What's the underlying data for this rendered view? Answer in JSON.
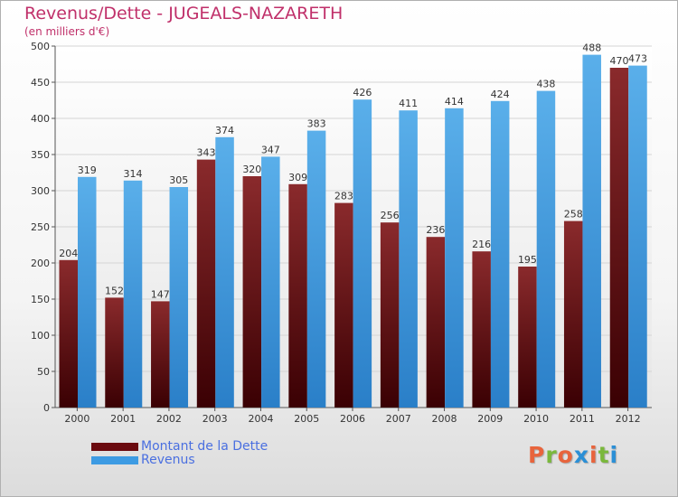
{
  "title": "Revenus/Dette - JUGEALS-NAZARETH",
  "subtitle": "(en milliers d'€)",
  "legend": [
    {
      "label": "Montant de la Dette",
      "color": "#6b0a0f"
    },
    {
      "label": "Revenus",
      "color": "#3d9be3"
    }
  ],
  "logo": {
    "text": "Proxiti",
    "colors": [
      "#e8643c",
      "#7ab83c",
      "#e8643c",
      "#2b8fd6",
      "#e8643c",
      "#7ab83c",
      "#2b8fd6"
    ]
  },
  "chart_data": {
    "type": "bar",
    "categories": [
      "2000",
      "2001",
      "2002",
      "2003",
      "2004",
      "2005",
      "2006",
      "2007",
      "2008",
      "2009",
      "2010",
      "2011",
      "2012"
    ],
    "series": [
      {
        "name": "Montant de la Dette",
        "values": [
          204,
          152,
          147,
          343,
          320,
          309,
          283,
          256,
          236,
          216,
          195,
          258,
          470
        ],
        "color": "#7a1a1d"
      },
      {
        "name": "Revenus",
        "values": [
          319,
          314,
          305,
          374,
          347,
          383,
          426,
          411,
          414,
          424,
          438,
          488,
          473
        ],
        "color": "#4aa3e6"
      }
    ],
    "ylim": [
      0,
      500
    ],
    "yticks": [
      0,
      50,
      100,
      150,
      200,
      250,
      300,
      350,
      400,
      450,
      500
    ],
    "grid": true,
    "legend_position": "bottom-left"
  }
}
